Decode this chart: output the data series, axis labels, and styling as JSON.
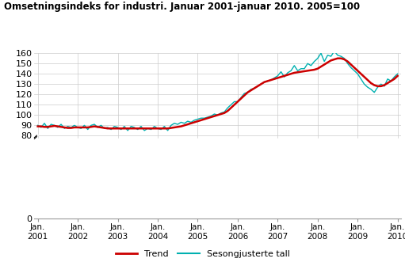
{
  "title": "Omsetningsindeks for industri. Januar 2001-januar 2010. 2005=100",
  "ylim": [
    0,
    160
  ],
  "yticks": [
    0,
    80,
    90,
    100,
    110,
    120,
    130,
    140,
    150,
    160
  ],
  "trend_color": "#cc0000",
  "seasonal_color": "#00b0b0",
  "trend_linewidth": 1.8,
  "seasonal_linewidth": 1.0,
  "background_color": "#ffffff",
  "grid_color": "#cccccc",
  "legend_labels": [
    "Trend",
    "Sesongjusterte tall"
  ],
  "x_tick_labels": [
    "Jan.\n2001",
    "Jan.\n2002",
    "Jan.\n2003",
    "Jan.\n2004",
    "Jan.\n2005",
    "Jan.\n2006",
    "Jan.\n2007",
    "Jan.\n2008",
    "Jan.\n2009",
    "Jan.\n2010"
  ],
  "trend": [
    89.0,
    89.0,
    88.5,
    88.5,
    89.0,
    89.5,
    89.0,
    88.5,
    88.0,
    87.5,
    87.5,
    88.0,
    88.0,
    88.0,
    88.0,
    88.0,
    88.5,
    89.0,
    88.5,
    88.0,
    87.5,
    87.0,
    87.0,
    87.0,
    87.0,
    87.0,
    87.0,
    87.0,
    87.0,
    87.0,
    87.0,
    87.0,
    87.0,
    87.0,
    87.0,
    87.0,
    87.0,
    87.0,
    87.0,
    87.0,
    87.5,
    88.0,
    88.5,
    89.0,
    90.0,
    91.0,
    92.0,
    93.0,
    94.0,
    95.0,
    96.0,
    97.0,
    98.0,
    99.0,
    100.0,
    101.0,
    102.0,
    104.0,
    107.0,
    110.0,
    113.0,
    116.0,
    119.0,
    122.0,
    124.0,
    126.0,
    128.0,
    130.0,
    132.0,
    133.0,
    134.0,
    135.0,
    136.0,
    137.0,
    138.0,
    139.0,
    140.0,
    141.0,
    141.5,
    142.0,
    142.5,
    143.0,
    143.5,
    144.0,
    145.0,
    147.0,
    149.0,
    151.0,
    153.0,
    154.0,
    155.0,
    155.0,
    154.0,
    152.0,
    149.0,
    146.0,
    143.0,
    140.0,
    137.0,
    134.0,
    131.0,
    129.0,
    128.0,
    128.0,
    129.0,
    131.0,
    133.0,
    135.0,
    138.0
  ],
  "seasonal": [
    90.0,
    88.0,
    92.0,
    87.0,
    91.0,
    90.0,
    88.0,
    91.0,
    87.0,
    89.0,
    88.0,
    90.0,
    88.0,
    87.0,
    90.0,
    86.0,
    90.0,
    91.0,
    88.0,
    90.0,
    87.0,
    88.0,
    86.0,
    89.0,
    88.0,
    86.0,
    89.0,
    85.0,
    89.0,
    88.0,
    86.0,
    89.0,
    85.0,
    87.0,
    86.0,
    89.0,
    87.0,
    86.0,
    89.0,
    85.0,
    90.0,
    92.0,
    91.0,
    93.0,
    92.0,
    94.0,
    93.0,
    95.0,
    96.0,
    97.0,
    97.0,
    98.0,
    99.0,
    101.0,
    100.0,
    102.0,
    103.0,
    107.0,
    110.0,
    113.0,
    113.0,
    117.0,
    121.0,
    122.0,
    125.0,
    126.0,
    128.0,
    130.0,
    132.0,
    133.0,
    134.0,
    136.0,
    138.0,
    142.0,
    137.0,
    141.0,
    143.0,
    148.0,
    143.0,
    145.0,
    145.0,
    150.0,
    148.0,
    152.0,
    155.0,
    160.0,
    152.0,
    158.0,
    157.0,
    162.0,
    158.0,
    157.0,
    155.0,
    150.0,
    146.0,
    143.0,
    140.0,
    135.0,
    130.0,
    127.0,
    125.0,
    122.0,
    127.0,
    130.0,
    128.0,
    135.0,
    133.0,
    137.0,
    140.0
  ]
}
